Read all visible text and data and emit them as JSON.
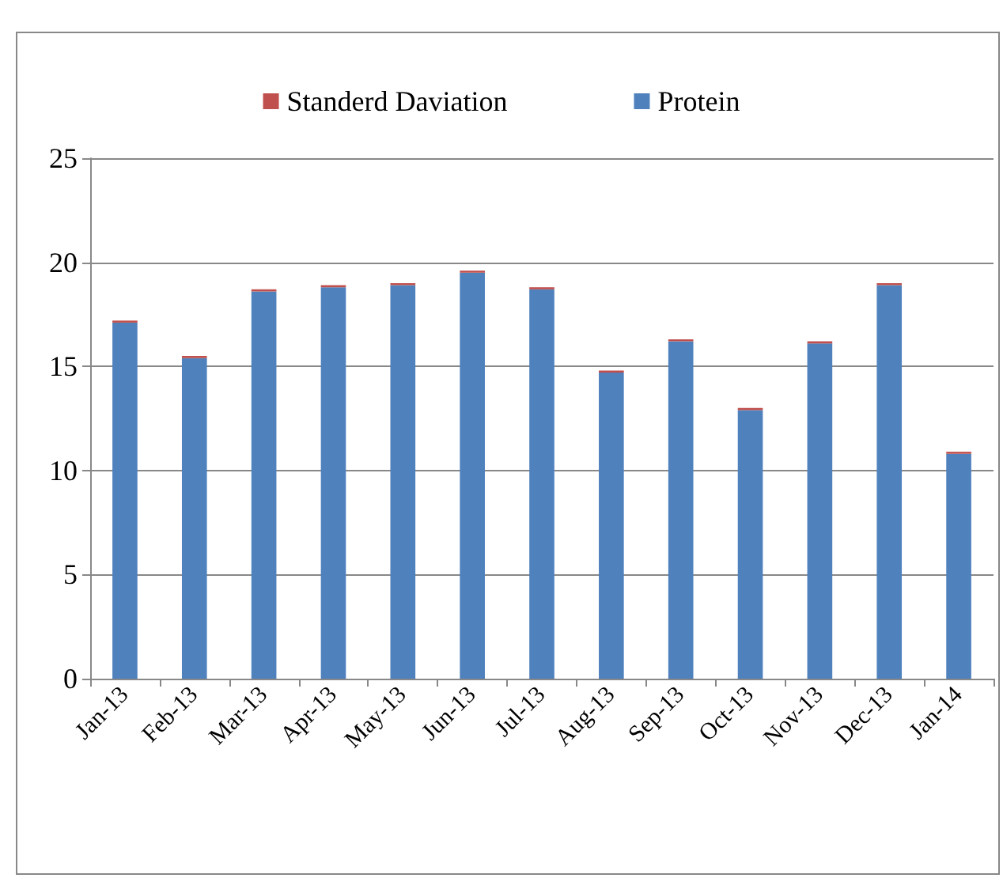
{
  "chart_data": {
    "type": "bar",
    "stacked": true,
    "categories": [
      "Jan-13",
      "Feb-13",
      "Mar-13",
      "Apr-13",
      "May-13",
      "Jun-13",
      "Jul-13",
      "Aug-13",
      "Sep-13",
      "Oct-13",
      "Nov-13",
      "Dec-13",
      "Jan-14"
    ],
    "series": [
      {
        "name": "Protein",
        "color": "#4f81bd",
        "values": [
          17.1,
          15.4,
          18.6,
          18.8,
          18.9,
          19.5,
          18.7,
          14.7,
          16.2,
          12.9,
          16.1,
          18.9,
          10.8
        ]
      },
      {
        "name": "Standerd Daviation",
        "color": "#c0504d",
        "values": [
          0.1,
          0.1,
          0.1,
          0.1,
          0.1,
          0.1,
          0.1,
          0.1,
          0.1,
          0.1,
          0.1,
          0.1,
          0.1
        ]
      }
    ],
    "ylim": [
      0,
      25
    ],
    "yticks": [
      0,
      5,
      10,
      15,
      20,
      25
    ],
    "grid": "y",
    "legend": "top"
  }
}
